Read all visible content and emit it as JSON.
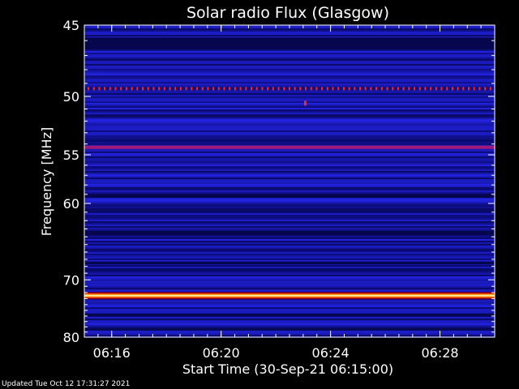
{
  "chart_data": {
    "type": "heatmap",
    "title": "Solar radio Flux (Glasgow)",
    "xlabel": "Start Time (30-Sep-21 06:15:00)",
    "ylabel": "Frequency [MHz]",
    "x_ticks": [
      "06:16",
      "06:20",
      "06:24",
      "06:28"
    ],
    "x_range": [
      "06:15:00",
      "06:30:00"
    ],
    "y_ticks": [
      45,
      50,
      55,
      60,
      70,
      80
    ],
    "ylim": [
      45,
      80
    ],
    "y_scale": "reciprocal",
    "features": [
      {
        "frequency_mhz": 49.4,
        "kind": "dotted emission line",
        "color": "#ff2020"
      },
      {
        "frequency_mhz": 54.3,
        "kind": "faint emission band",
        "color": "#d01860"
      },
      {
        "frequency_mhz": 72.5,
        "kind": "strong continuous band",
        "color": "#ffffc0"
      }
    ],
    "colors": {
      "background": "#000000",
      "low": "#0a0a70",
      "mid": "#2020ff",
      "high": "#ffff60"
    }
  },
  "footer": {
    "updated": "Updated Tue Oct 12 17:31:27 2021"
  }
}
